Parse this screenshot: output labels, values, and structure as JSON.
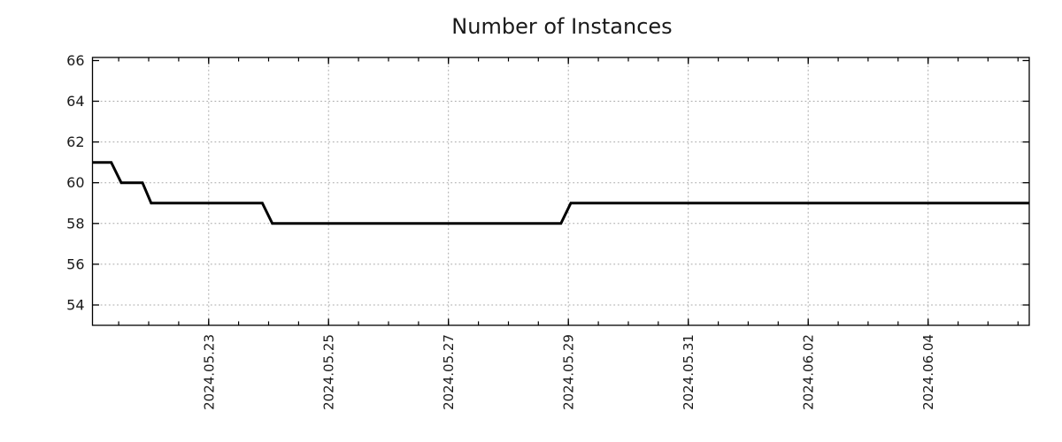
{
  "chart_data": {
    "type": "line",
    "title": "Number of Instances",
    "legend": "none",
    "series": [
      {
        "name": "instances",
        "color": "#000000",
        "points": [
          [
            "2024-05-21 01:30",
            61
          ],
          [
            "2024-05-21 09:00",
            61
          ],
          [
            "2024-05-21 13:00",
            60
          ],
          [
            "2024-05-21 21:30",
            60
          ],
          [
            "2024-05-22 01:00",
            59
          ],
          [
            "2024-05-23 21:30",
            59
          ],
          [
            "2024-05-24 01:30",
            58
          ],
          [
            "2024-05-28 21:00",
            58
          ],
          [
            "2024-05-29 01:00",
            59
          ],
          [
            "2024-06-05 16:30",
            59
          ]
        ]
      }
    ],
    "x_axis": {
      "type": "datetime",
      "range": [
        "2024-05-21 01:30",
        "2024-06-05 16:30"
      ],
      "major_ticks": [
        {
          "date": "2024-05-23",
          "label": "2024.05.23"
        },
        {
          "date": "2024-05-25",
          "label": "2024.05.25"
        },
        {
          "date": "2024-05-27",
          "label": "2024.05.27"
        },
        {
          "date": "2024-05-29",
          "label": "2024.05.29"
        },
        {
          "date": "2024-05-31",
          "label": "2024.05.31"
        },
        {
          "date": "2024-06-02",
          "label": "2024.06.02"
        },
        {
          "date": "2024-06-04",
          "label": "2024.06.04"
        }
      ],
      "minor_tick_interval_hours": 12,
      "label_rotation_deg": -90
    },
    "y_axis": {
      "range": [
        53.0,
        66.15
      ],
      "ticks": [
        66,
        64,
        62,
        60,
        58,
        56,
        54
      ],
      "gridline_values": [
        64,
        62,
        60,
        58,
        56,
        54
      ]
    },
    "grid": {
      "style": "dotted",
      "color": "#a8a8a8"
    },
    "style": {
      "background": "#ffffff",
      "axis_color": "#000000",
      "text_color": "#1a1a1a",
      "line_width": 3
    }
  }
}
